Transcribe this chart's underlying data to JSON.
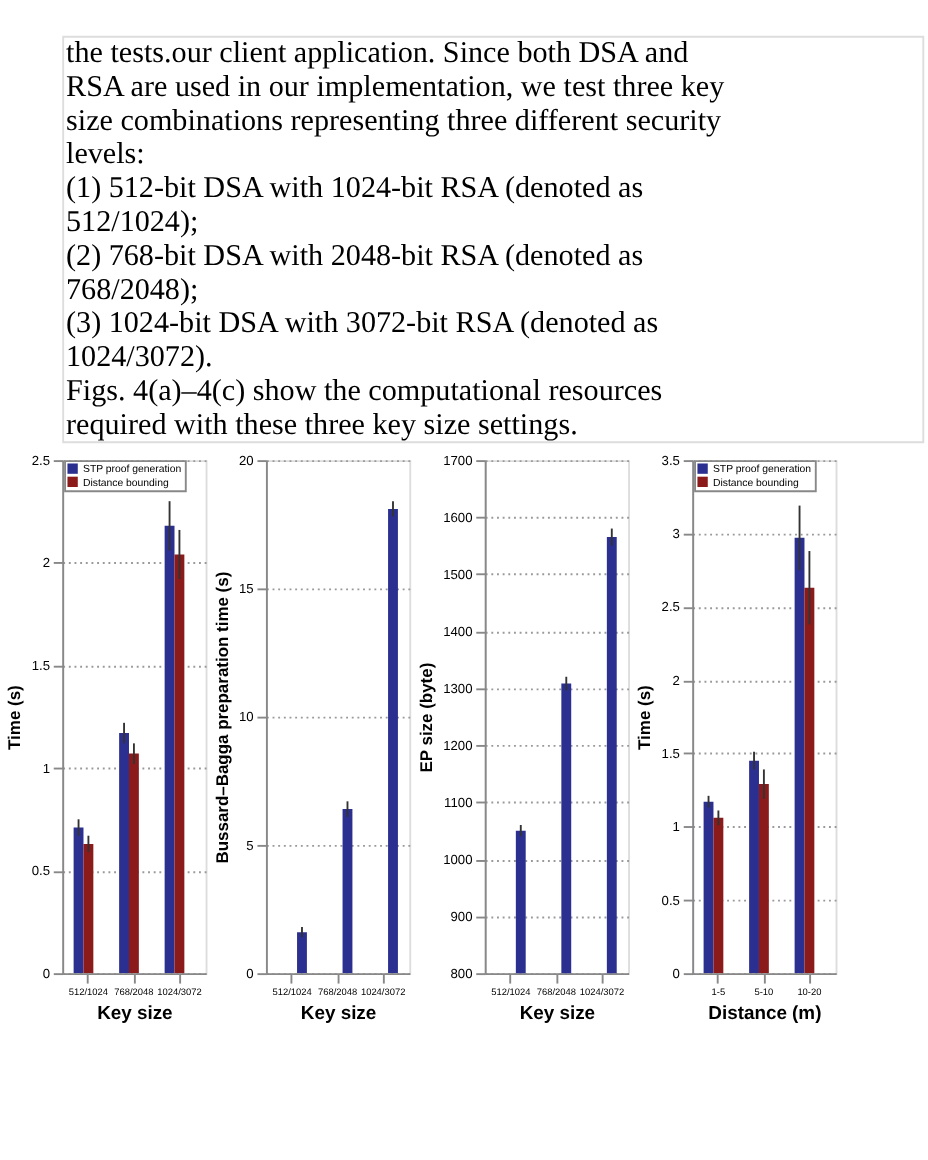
{
  "chart_data": [
    {
      "type": "other",
      "annotations": [
        "the tests.our client application. Since both DSA and",
        "RSA are used in our implementation, we test three key",
        "size combinations representing three different security",
        "levels:",
        "(1) 512-bit DSA with 1024-bit RSA (denoted as",
        "512/1024);",
        "(2) 768-bit DSA with 2048-bit RSA (denoted as",
        "768/2048);",
        "(3) 1024-bit DSA with 3072-bit RSA (denoted as",
        "1024/3072).",
        "Figs. 4(a)–4(c) show the computational resources",
        "required with these three key size settings."
      ]
    },
    {
      "type": "bar",
      "xlabel": "Key size",
      "ylabel": "Time (s)",
      "categories": [
        "512/1024",
        "768/2048",
        "1024/3072"
      ],
      "ylim": [
        0,
        2.5
      ],
      "yticks": [
        0,
        0.5,
        1,
        1.5,
        2,
        2.5
      ],
      "grid": "y",
      "legend": "top left",
      "series": [
        {
          "name": "STP proof generation",
          "color": "#2b2f8f",
          "values": [
            0.71,
            1.17,
            2.18
          ],
          "errors": [
            0.04,
            0.05,
            0.12
          ]
        },
        {
          "name": "Distance bounding",
          "color": "#8b1a1a",
          "values": [
            0.63,
            1.07,
            2.04
          ],
          "errors": [
            0.04,
            0.05,
            0.12
          ]
        }
      ]
    },
    {
      "type": "bar",
      "xlabel": "Key size",
      "ylabel": "Bussard–Bagga preparation time (s)",
      "categories": [
        "512/1024",
        "768/2048",
        "1024/3072"
      ],
      "ylim": [
        0,
        20
      ],
      "yticks": [
        0,
        5,
        10,
        15,
        20
      ],
      "grid": "y",
      "series": [
        {
          "color": "#2b2f8f",
          "values": [
            1.6,
            6.4,
            18.1
          ],
          "errors": [
            0.2,
            0.3,
            0.3
          ]
        }
      ]
    },
    {
      "type": "bar",
      "xlabel": "Key size",
      "ylabel": "EP size (byte)",
      "categories": [
        "512/1024",
        "768/2048",
        "1024/3072"
      ],
      "ylim": [
        800,
        1700
      ],
      "yticks": [
        800,
        900,
        1000,
        1100,
        1200,
        1300,
        1400,
        1500,
        1600,
        1700
      ],
      "grid": "y",
      "series": [
        {
          "color": "#2b2f8f",
          "values": [
            1050,
            1308,
            1565
          ],
          "errors": [
            10,
            12,
            15
          ]
        }
      ]
    },
    {
      "type": "bar",
      "xlabel": "Distance (m)",
      "ylabel": "Time (s)",
      "categories": [
        "1-5",
        "5-10",
        "10-20"
      ],
      "ylim": [
        0,
        3.5
      ],
      "yticks": [
        0,
        0.5,
        1,
        1.5,
        2,
        2.5,
        3,
        3.5
      ],
      "grid": "y",
      "legend": "top left",
      "series": [
        {
          "name": "STP proof generation",
          "color": "#2b2f8f",
          "values": [
            1.17,
            1.45,
            2.97
          ],
          "errors": [
            0.04,
            0.06,
            0.22
          ]
        },
        {
          "name": "Distance bounding",
          "color": "#8b1a1a",
          "values": [
            1.06,
            1.29,
            2.63
          ],
          "errors": [
            0.05,
            0.1,
            0.25
          ]
        }
      ]
    }
  ]
}
